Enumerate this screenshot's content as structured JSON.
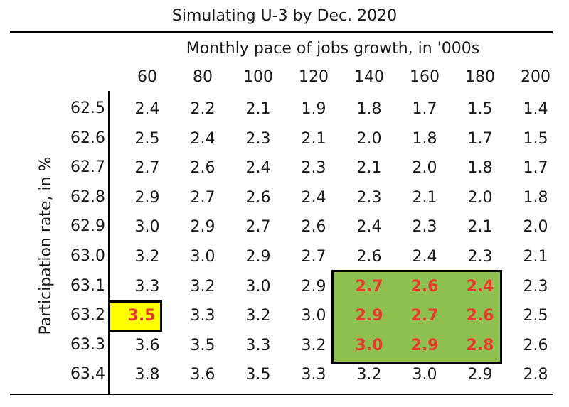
{
  "chart_data": {
    "type": "table",
    "title": "Simulating U-3 by Dec. 2020",
    "xlabel": "Monthly pace of jobs growth, in '000s",
    "ylabel": "Participation rate, in %",
    "columns": [
      "60",
      "80",
      "100",
      "120",
      "140",
      "160",
      "180",
      "200"
    ],
    "rows": [
      "62.5",
      "62.6",
      "62.7",
      "62.8",
      "62.9",
      "63.0",
      "63.1",
      "63.2",
      "63.3",
      "63.4"
    ],
    "values": [
      [
        "2.4",
        "2.2",
        "2.1",
        "1.9",
        "1.8",
        "1.7",
        "1.5",
        "1.4"
      ],
      [
        "2.5",
        "2.4",
        "2.3",
        "2.1",
        "2.0",
        "1.8",
        "1.7",
        "1.5"
      ],
      [
        "2.7",
        "2.6",
        "2.4",
        "2.3",
        "2.1",
        "2.0",
        "1.8",
        "1.7"
      ],
      [
        "2.9",
        "2.7",
        "2.6",
        "2.4",
        "2.3",
        "2.1",
        "2.0",
        "1.8"
      ],
      [
        "3.0",
        "2.9",
        "2.7",
        "2.6",
        "2.4",
        "2.3",
        "2.1",
        "2.0"
      ],
      [
        "3.2",
        "3.0",
        "2.9",
        "2.7",
        "2.6",
        "2.4",
        "2.3",
        "2.1"
      ],
      [
        "3.3",
        "3.2",
        "3.0",
        "2.9",
        "2.7",
        "2.6",
        "2.4",
        "2.3"
      ],
      [
        "3.5",
        "3.3",
        "3.2",
        "3.0",
        "2.9",
        "2.7",
        "2.6",
        "2.5"
      ],
      [
        "3.6",
        "3.5",
        "3.3",
        "3.2",
        "3.0",
        "2.9",
        "2.8",
        "2.6"
      ],
      [
        "3.8",
        "3.6",
        "3.5",
        "3.3",
        "3.2",
        "3.0",
        "2.9",
        "2.8"
      ]
    ],
    "highlight_green": {
      "rows": [
        "63.1",
        "63.2",
        "63.3"
      ],
      "columns": [
        "140",
        "160",
        "180"
      ],
      "color": "#8ec04f"
    },
    "highlight_yellow": {
      "row": "63.2",
      "column": "60",
      "color": "#ffff00"
    },
    "highlight_text_color": "#e8392c"
  }
}
